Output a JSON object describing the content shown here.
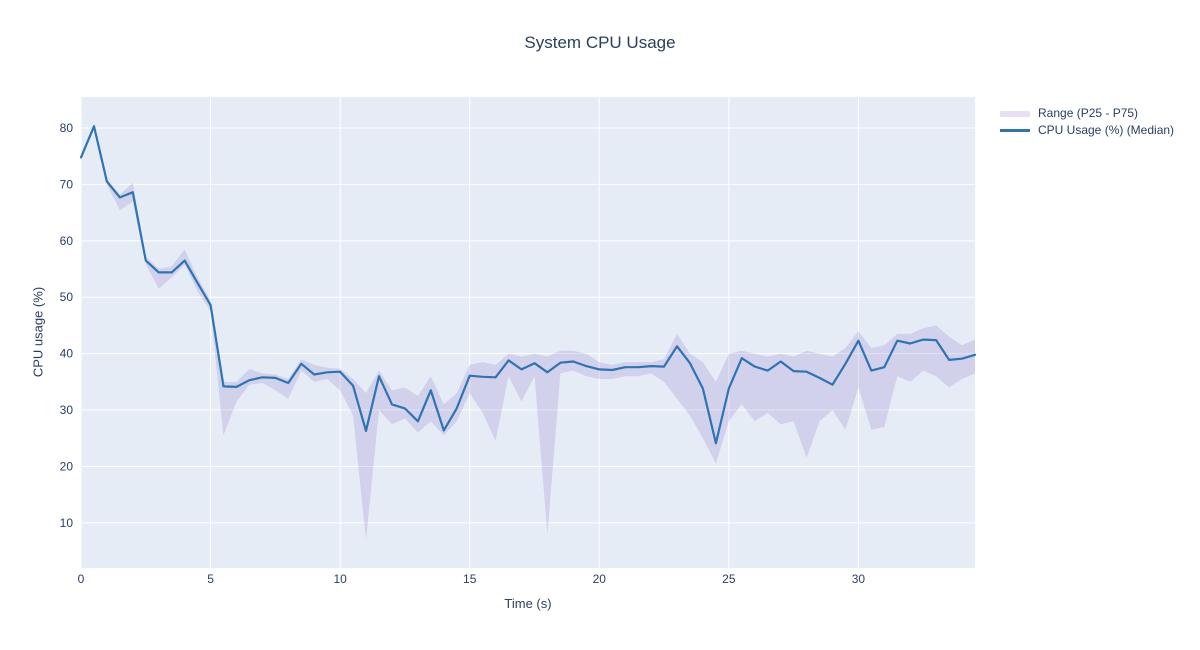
{
  "chart_data": {
    "type": "line",
    "title": "System CPU Usage",
    "xlabel": "Time (s)",
    "ylabel": "CPU usage (%)",
    "x_range": [
      0,
      34.5
    ],
    "y_range": [
      2,
      85.5
    ],
    "x_start": 0,
    "x_step": 0.5,
    "x_ticks": [
      0,
      5,
      10,
      15,
      20,
      25,
      30
    ],
    "y_ticks": [
      10,
      20,
      30,
      40,
      50,
      60,
      70,
      80
    ],
    "grid": "on",
    "legend_position": "top-right-outside",
    "legend": [
      {
        "label": "Range (P25 - P75)",
        "swatch": "band"
      },
      {
        "label": "CPU Usage (%) (Median)",
        "swatch": "line"
      }
    ],
    "colors": {
      "line": "#2d74b4",
      "band_fill": "rgba(144,116,196,0.22)",
      "plot_bg": "#e5ecf6",
      "grid": "#ffffff",
      "text": "#2a3f5f"
    },
    "series": [
      {
        "name": "CPU Usage (%) (Median)",
        "role": "median",
        "values": [
          74.8,
          80.3,
          70.5,
          67.7,
          68.6,
          56.5,
          54.4,
          54.4,
          56.5,
          52.5,
          48.6,
          34.2,
          34.1,
          35.3,
          35.8,
          35.7,
          34.8,
          38.2,
          36.3,
          36.7,
          36.8,
          34.3,
          26.3,
          36.0,
          31.0,
          30.3,
          28.0,
          33.5,
          26.4,
          30.3,
          36.1,
          35.9,
          35.8,
          38.8,
          37.2,
          38.3,
          36.7,
          38.4,
          38.6,
          37.8,
          37.2,
          37.1,
          37.6,
          37.6,
          37.8,
          37.7,
          41.3,
          38.3,
          33.8,
          24.1,
          33.8,
          39.2,
          37.7,
          37.0,
          38.6,
          36.9,
          36.8,
          35.7,
          34.5,
          38.2,
          42.3,
          37.0,
          37.6,
          42.3,
          41.8,
          42.5,
          42.4,
          38.9,
          39.1,
          39.8
        ]
      },
      {
        "name": "P25",
        "role": "band-lower",
        "values": [
          74.3,
          79.8,
          70.0,
          65.4,
          67.0,
          55.8,
          51.5,
          53.5,
          55.8,
          51.0,
          47.5,
          25.5,
          31.5,
          34.5,
          34.8,
          33.5,
          32.0,
          37.0,
          35.0,
          35.5,
          33.5,
          29.0,
          7.0,
          30.0,
          27.5,
          28.5,
          26.0,
          28.0,
          25.5,
          28.0,
          33.0,
          29.5,
          24.5,
          36.0,
          31.5,
          36.0,
          8.0,
          36.5,
          37.0,
          36.0,
          35.5,
          35.5,
          36.0,
          36.0,
          36.5,
          35.0,
          32.0,
          29.0,
          25.0,
          20.5,
          28.0,
          31.0,
          28.0,
          29.5,
          27.5,
          28.0,
          21.5,
          28.0,
          30.0,
          26.5,
          34.0,
          26.5,
          27.0,
          36.0,
          35.0,
          37.0,
          36.0,
          34.0,
          35.5,
          36.5
        ]
      },
      {
        "name": "P75",
        "role": "band-upper",
        "values": [
          75.3,
          80.6,
          71.0,
          68.2,
          70.3,
          57.2,
          55.0,
          55.5,
          58.5,
          53.5,
          49.5,
          35.0,
          35.0,
          37.3,
          36.5,
          36.3,
          35.5,
          39.0,
          38.0,
          37.5,
          37.3,
          35.5,
          33.0,
          37.0,
          33.5,
          34.0,
          32.5,
          36.0,
          31.0,
          33.0,
          38.0,
          38.5,
          38.0,
          40.0,
          39.5,
          40.0,
          39.5,
          40.5,
          40.5,
          40.0,
          38.5,
          38.0,
          38.5,
          38.5,
          38.5,
          39.0,
          43.5,
          40.0,
          38.5,
          35.0,
          40.0,
          40.5,
          40.0,
          39.5,
          40.0,
          39.5,
          40.5,
          40.0,
          39.5,
          41.0,
          44.0,
          41.0,
          41.5,
          43.5,
          43.5,
          44.5,
          45.0,
          43.0,
          41.5,
          42.5
        ]
      }
    ]
  }
}
